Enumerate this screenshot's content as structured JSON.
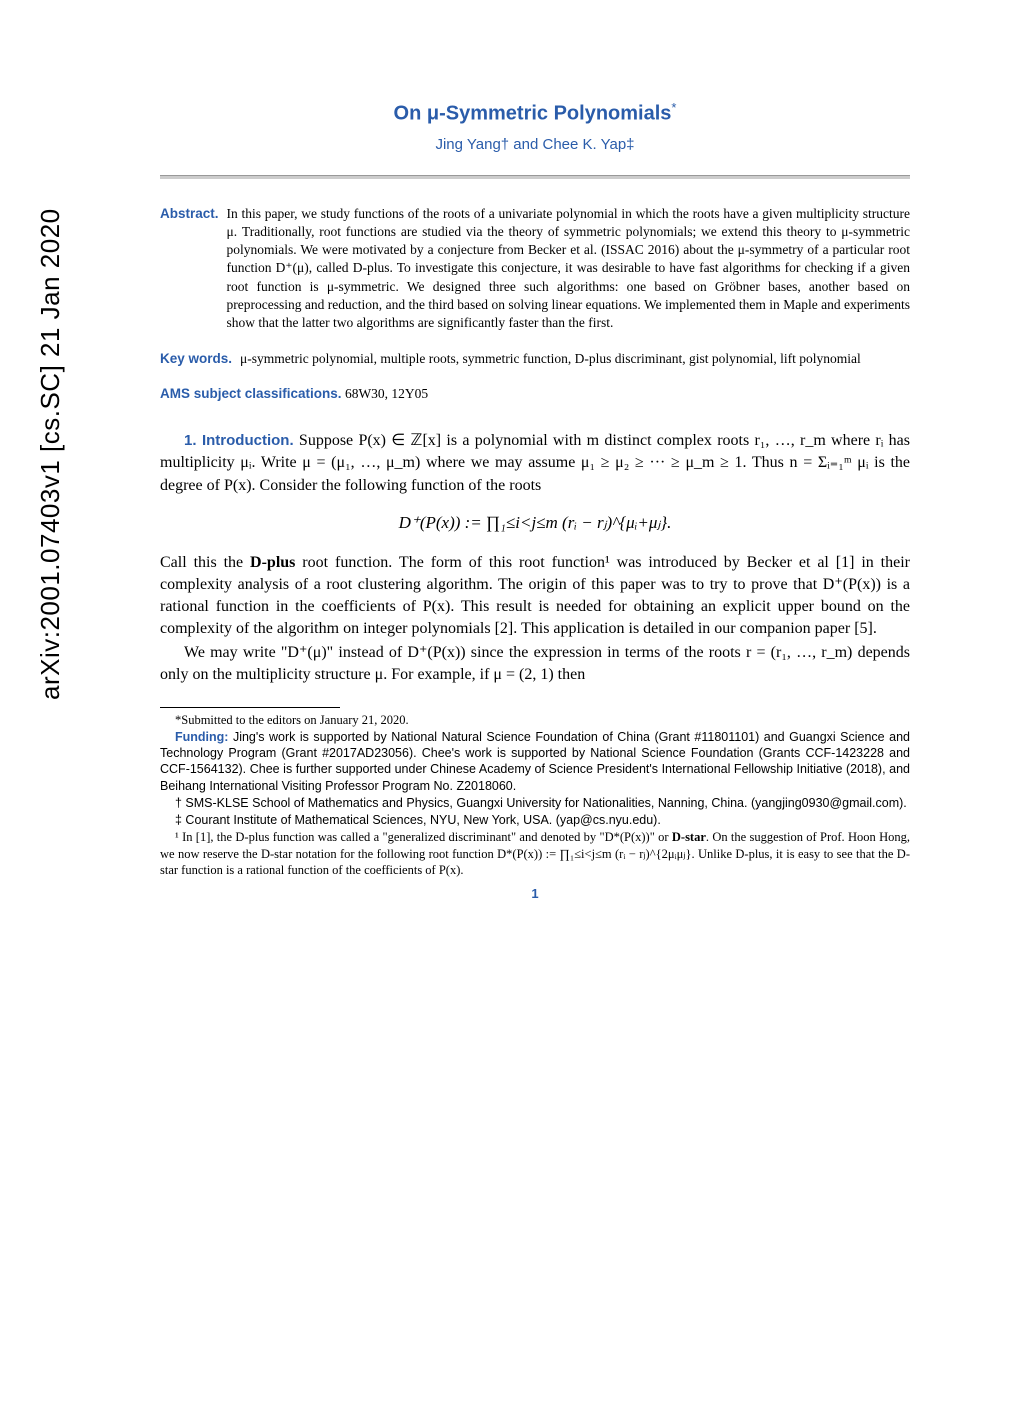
{
  "arxiv_stamp": "arXiv:2001.07403v1  [cs.SC]  21 Jan 2020",
  "title": "On μ-Symmetric Polynomials",
  "title_footmark": "*",
  "authors_line": "Jing Yang†  and  Chee K. Yap‡",
  "abstract_label": "Abstract.",
  "abstract_text": "In this paper, we study functions of the roots of a univariate polynomial in which the roots have a given multiplicity structure μ. Traditionally, root functions are studied via the theory of symmetric polynomials; we extend this theory to μ-symmetric polynomials. We were motivated by a conjecture from Becker et al. (ISSAC 2016) about the μ-symmetry of a particular root function D⁺(μ), called D-plus. To investigate this conjecture, it was desirable to have fast algorithms for checking if a given root function is μ-symmetric. We designed three such algorithms: one based on Gröbner bases, another based on preprocessing and reduction, and the third based on solving linear equations. We implemented them in Maple and experiments show that the latter two algorithms are significantly faster than the first.",
  "keywords_label": "Key words.",
  "keywords_text": "μ-symmetric polynomial, multiple roots, symmetric function, D-plus discriminant, gist polynomial, lift polynomial",
  "ams_label": "AMS subject classifications.",
  "ams_text": "68W30, 12Y05",
  "section1_head": "1. Introduction.",
  "intro_p1": "Suppose P(x) ∈ ℤ[x] is a polynomial with m distinct complex roots r₁, …, r_m where rᵢ has multiplicity μᵢ. Write μ = (μ₁, …, μ_m) where we may assume μ₁ ≥ μ₂ ≥ ··· ≥ μ_m ≥ 1. Thus n = Σᵢ₌₁ᵐ μᵢ is the degree of P(x). Consider the following function of the roots",
  "equation1": "D⁺(P(x)) :=  ∏₁≤i<j≤m  (rᵢ − rⱼ)^{μᵢ+μⱼ}.",
  "intro_p2a": "Call this the ",
  "dplus_bold": "D-plus",
  "intro_p2b": " root function. The form of this root function¹ was introduced by Becker et al [1] in their complexity analysis of a root clustering algorithm. The origin of this paper was to try to prove that D⁺(P(x)) is a rational function in the coefficients of P(x). This result is needed for obtaining an explicit upper bound on the complexity of the algorithm on integer polynomials [2]. This application is detailed in our companion paper [5].",
  "intro_p3": "We may write \"D⁺(μ)\" instead of D⁺(P(x)) since the expression in terms of the roots r = (r₁, …, r_m) depends only on the multiplicity structure μ. For example, if μ = (2, 1) then",
  "footnotes": {
    "star": "*Submitted to the editors on January 21, 2020.",
    "funding_label": "Funding:",
    "funding_text": "Jing's work is supported by National Natural Science Foundation of China (Grant #11801101) and Guangxi Science and Technology Program (Grant #2017AD23056). Chee's work is supported by National Science Foundation (Grants CCF-1423228 and CCF-1564132). Chee is further supported under Chinese Academy of Science President's International Fellowship Initiative (2018), and Beihang International Visiting Professor Program No. Z2018060.",
    "dagger": "† SMS-KLSE School of Mathematics and Physics, Guangxi University for Nationalities, Nanning, China. (yangjing0930@gmail.com).",
    "ddagger": "‡ Courant Institute of Mathematical Sciences, NYU, New York, USA. (yap@cs.nyu.edu).",
    "fn1a": "¹ In [1], the D-plus function was called a \"generalized discriminant\" and denoted by \"D*(P(x))\" or ",
    "dstar_bold": "D-star",
    "fn1b": ". On the suggestion of Prof. Hoon Hong, we now reserve the D-star notation for the following root function D*(P(x)) := ∏₁≤i<j≤m (rᵢ − rⱼ)^{2μᵢμⱼ}. Unlike D-plus, it is easy to see that the D-star function is a rational function of the coefficients of P(x)."
  },
  "pagenum": "1",
  "colors": {
    "accent": "#2a5caa",
    "text": "#000000",
    "bg": "#ffffff"
  }
}
